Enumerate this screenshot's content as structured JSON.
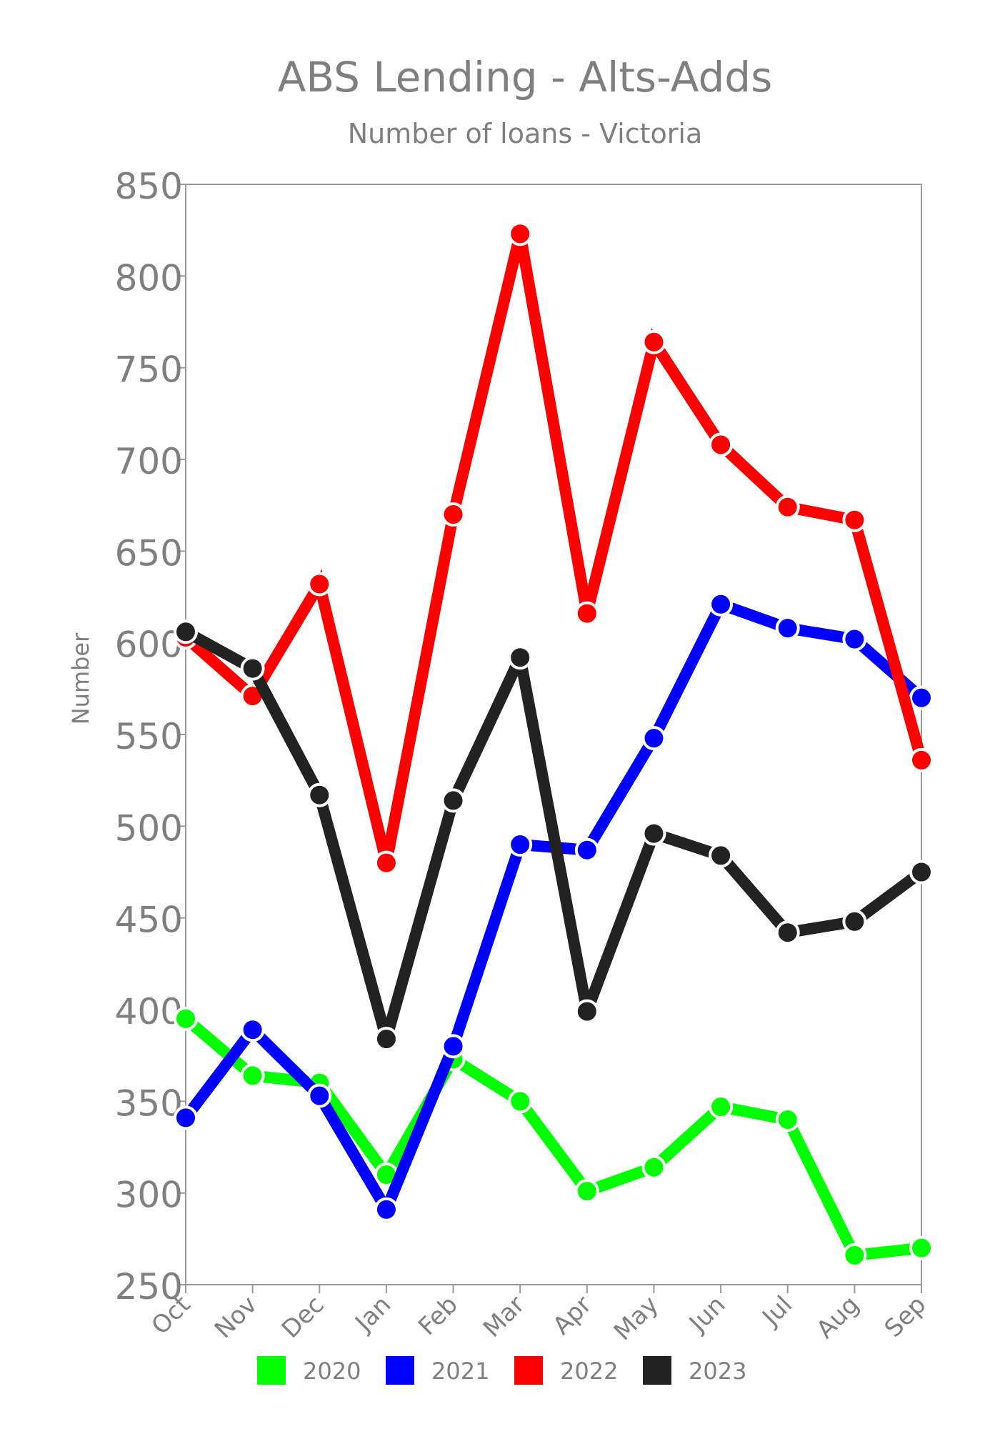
{
  "chart_data": {
    "type": "line",
    "title": "ABS Lending - Alts-Adds",
    "subtitle": "Number of loans - Victoria",
    "ylabel": "Number",
    "xlabel": "",
    "categories": [
      "Oct",
      "Nov",
      "Dec",
      "Jan",
      "Feb",
      "Mar",
      "Apr",
      "May",
      "Jun",
      "Jul",
      "Aug",
      "Sep"
    ],
    "ylim": [
      250,
      850
    ],
    "yticks": [
      250,
      300,
      350,
      400,
      450,
      500,
      550,
      600,
      650,
      700,
      750,
      800,
      850
    ],
    "ytick_labels": [
      "250",
      "300",
      "350",
      "400",
      "450",
      "500",
      "550",
      "600",
      "650",
      "700",
      "750",
      "800",
      "850"
    ],
    "grid": false,
    "legend_position": "bottom",
    "series": [
      {
        "name": "2020",
        "color": "#00ff00",
        "values": [
          395,
          364,
          360,
          310,
          373,
          350,
          301,
          314,
          347,
          340,
          266,
          270
        ]
      },
      {
        "name": "2021",
        "color": "#0000ff",
        "values": [
          341,
          389,
          353,
          291,
          380,
          490,
          487,
          548,
          621,
          608,
          602,
          570
        ]
      },
      {
        "name": "2022",
        "color": "#ff0000",
        "values": [
          603,
          571,
          632,
          480,
          670,
          823,
          616,
          764,
          708,
          674,
          667,
          536
        ]
      },
      {
        "name": "2023",
        "color": "#222222",
        "values": [
          606,
          586,
          517,
          384,
          514,
          592,
          399,
          496,
          484,
          442,
          448,
          475
        ]
      }
    ]
  }
}
